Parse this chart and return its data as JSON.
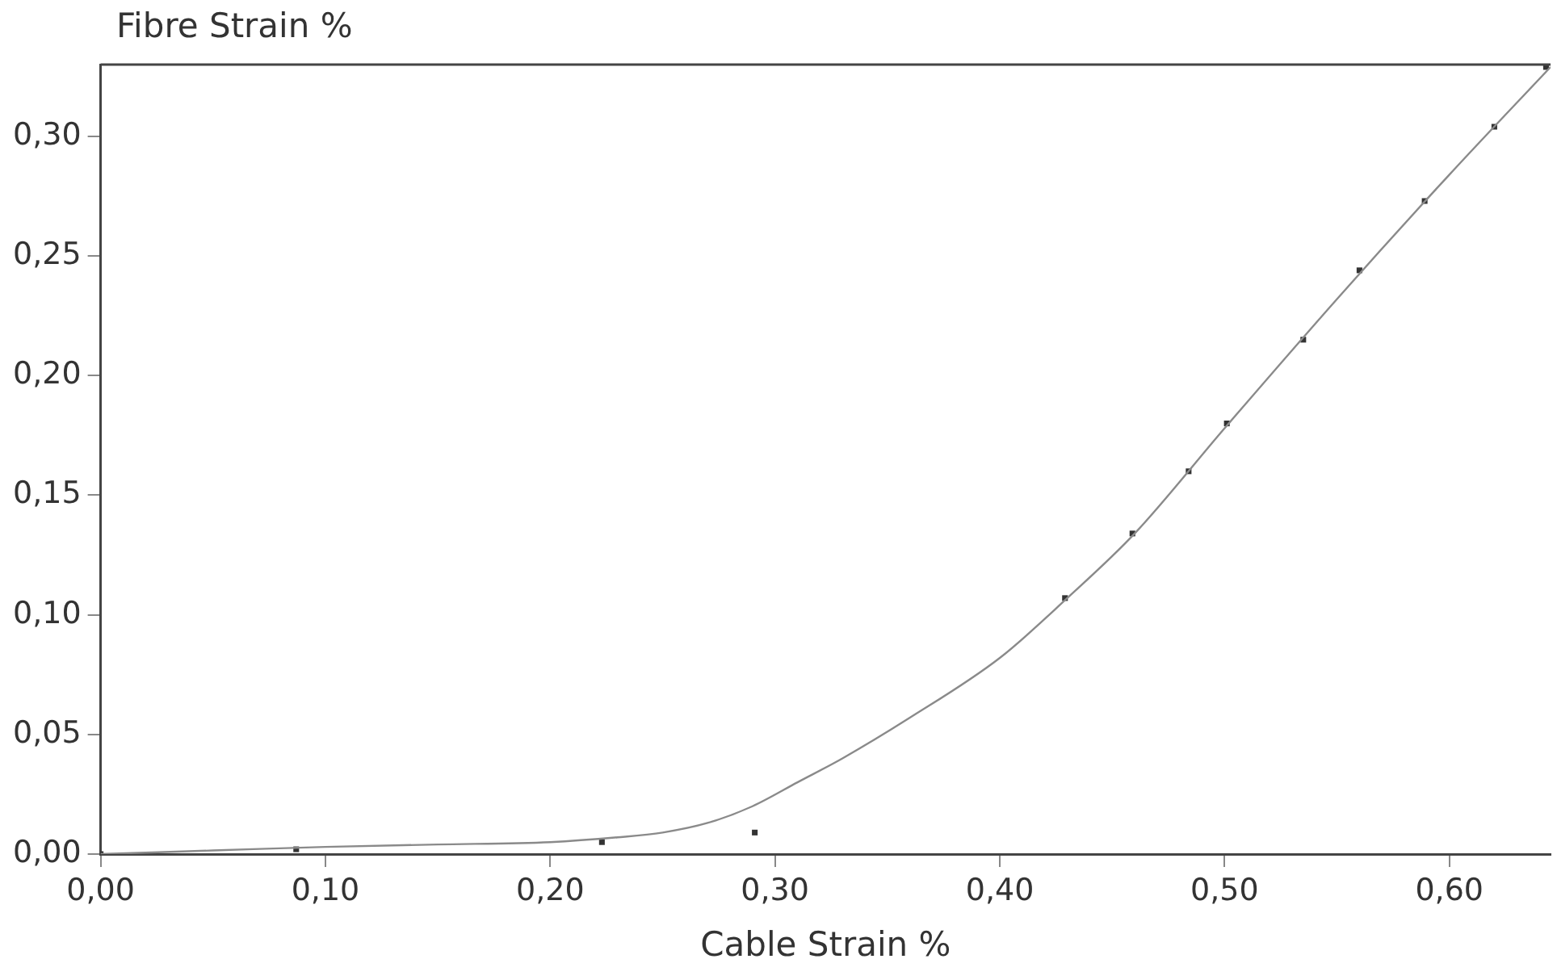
{
  "chart_data": {
    "type": "scatter",
    "xlabel": "Cable Strain %",
    "ylabel": "Fibre Strain %",
    "xlim": [
      0,
      0.645
    ],
    "ylim": [
      0,
      0.33
    ],
    "xticks": [
      {
        "value": 0,
        "label": "0,00"
      },
      {
        "value": 0.1,
        "label": "0,10"
      },
      {
        "value": 0.2,
        "label": "0,20"
      },
      {
        "value": 0.3,
        "label": "0,30"
      },
      {
        "value": 0.4,
        "label": "0,40"
      },
      {
        "value": 0.5,
        "label": "0,50"
      },
      {
        "value": 0.6,
        "label": "0,60"
      }
    ],
    "yticks": [
      {
        "value": 0,
        "label": "0,00"
      },
      {
        "value": 0.05,
        "label": "0,05"
      },
      {
        "value": 0.1,
        "label": "0,10"
      },
      {
        "value": 0.15,
        "label": "0,15"
      },
      {
        "value": 0.2,
        "label": "0,20"
      },
      {
        "value": 0.25,
        "label": "0,25"
      },
      {
        "value": 0.3,
        "label": "0,30"
      }
    ],
    "grid": false,
    "legend": false,
    "series": [
      {
        "type": "line",
        "marker": "none",
        "line_style": "solid",
        "color": "#8a8a8a",
        "x": [
          0,
          0.05,
          0.1,
          0.15,
          0.2,
          0.23,
          0.25,
          0.27,
          0.29,
          0.31,
          0.33,
          0.36,
          0.4,
          0.43,
          0.46,
          0.5,
          0.55,
          0.6,
          0.645
        ],
        "values": [
          0,
          0.0015,
          0.003,
          0.004,
          0.005,
          0.007,
          0.009,
          0.013,
          0.02,
          0.03,
          0.04,
          0.057,
          0.082,
          0.107,
          0.134,
          0.178,
          0.232,
          0.284,
          0.329
        ]
      },
      {
        "marker": "square",
        "color": "#333333",
        "x": [
          0,
          0.087,
          0.223,
          0.291,
          0.429,
          0.459,
          0.484,
          0.501,
          0.535,
          0.56,
          0.589,
          0.62,
          0.643
        ],
        "values": [
          0,
          0.002,
          0.005,
          0.009,
          0.107,
          0.134,
          0.16,
          0.18,
          0.215,
          0.244,
          0.273,
          0.304,
          0.329
        ]
      }
    ]
  }
}
